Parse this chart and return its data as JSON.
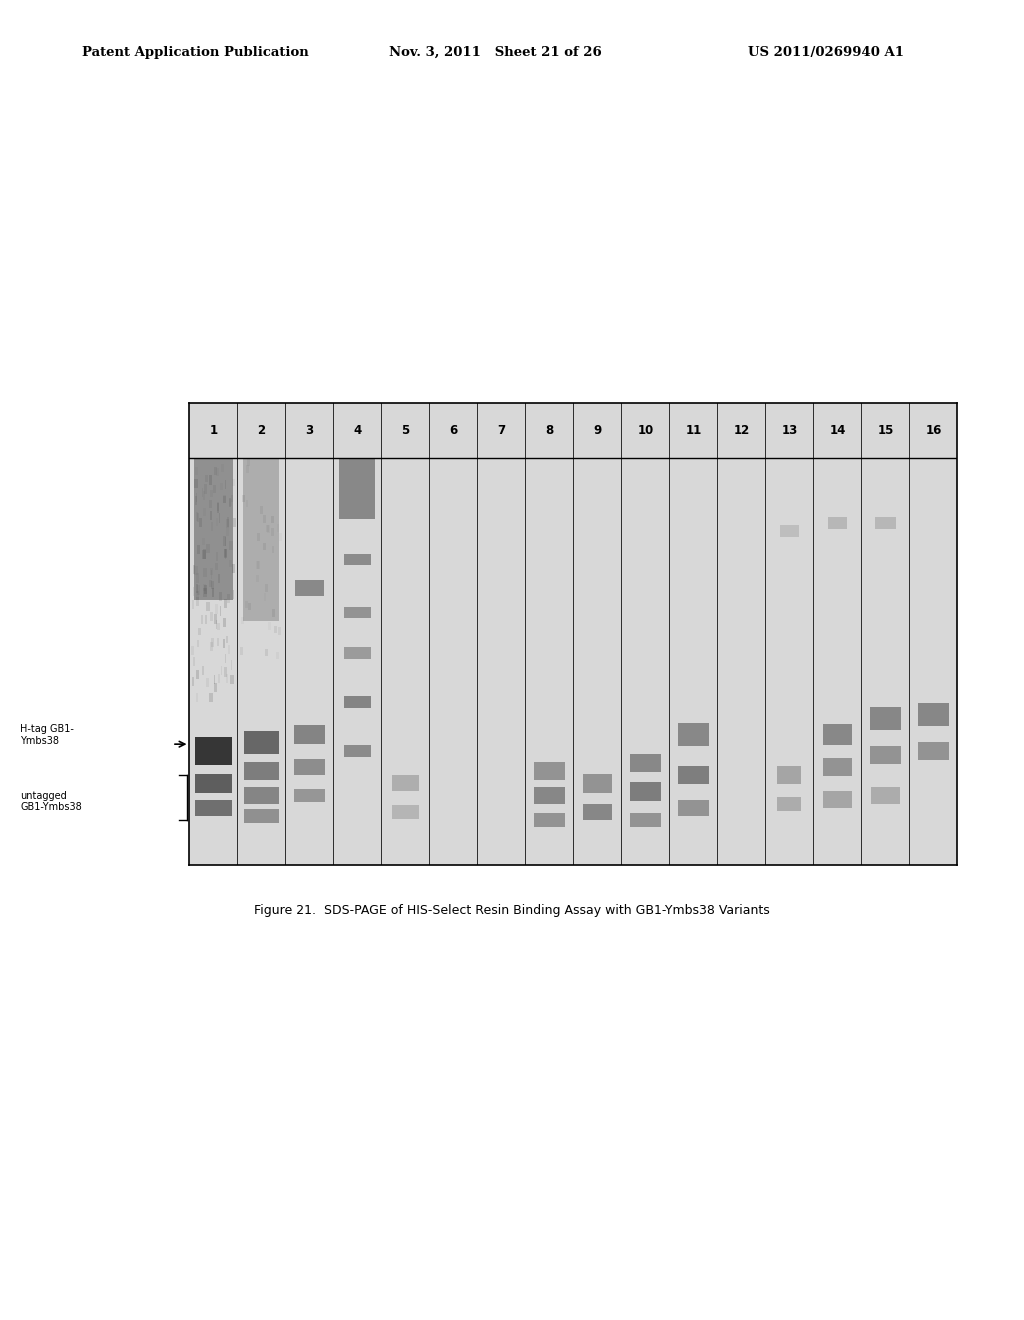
{
  "page_title_left": "Patent Application Publication",
  "page_title_center": "Nov. 3, 2011   Sheet 21 of 26",
  "page_title_right": "US 2011/0269940 A1",
  "figure_caption": "Figure 21.  SDS-PAGE of HIS-Select Resin Binding Assay with GB1-Ymbs38 Variants",
  "lane_labels": [
    "1",
    "2",
    "3",
    "4",
    "5",
    "6",
    "7",
    "8",
    "9",
    "10",
    "11",
    "12",
    "13",
    "14",
    "15",
    "16"
  ],
  "label_htag": "H-tag GB1-\nYmbs38",
  "label_untagged": "untagged\nGB1-Ymbs38",
  "page_bg": "#ffffff"
}
